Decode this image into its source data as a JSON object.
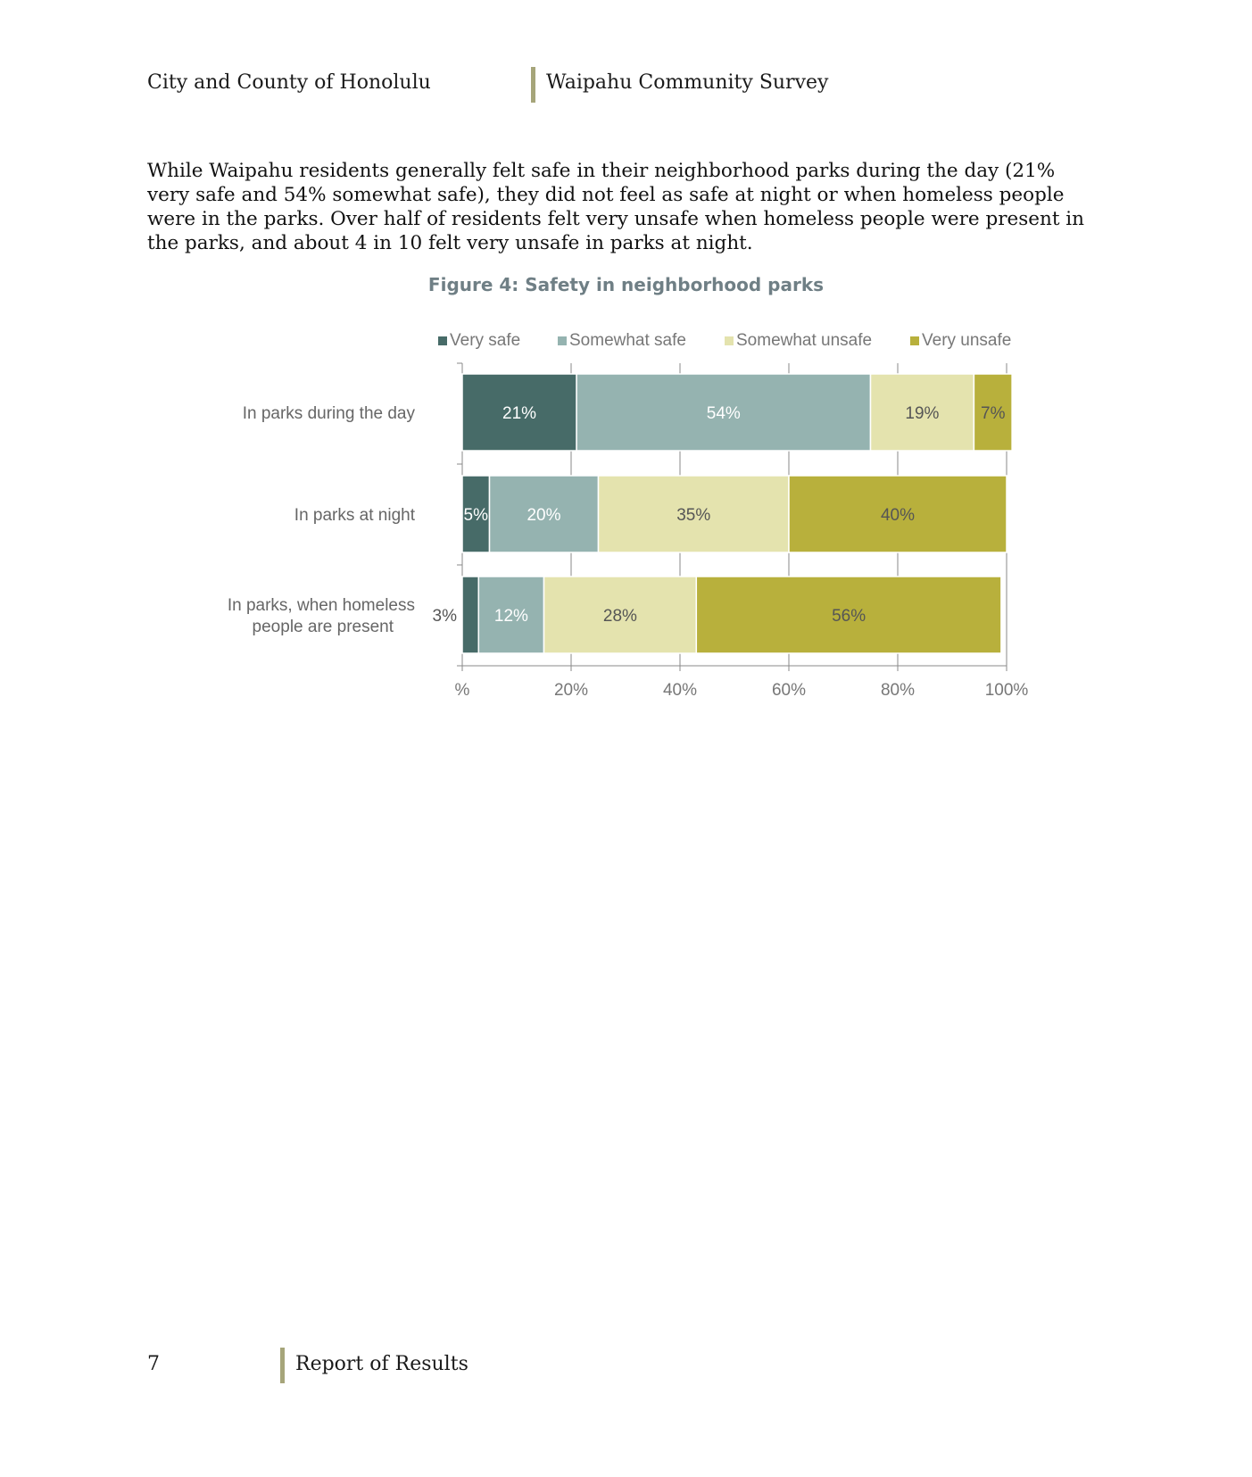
{
  "header": {
    "left": "City and County of Honolulu",
    "right": "Waipahu Community Survey"
  },
  "body": {
    "paragraph": "While Waipahu residents generally felt safe in their neighborhood parks during the day (21% very safe and 54% somewhat safe), they did not feel as safe at night or when homeless people were in the parks. Over half of residents felt very unsafe when homeless people were present in the parks, and about 4 in 10 felt very unsafe in parks at night."
  },
  "figure": {
    "title": "Figure 4: Safety in neighborhood parks"
  },
  "chart_data": {
    "type": "bar",
    "orientation": "horizontal",
    "stacked": true,
    "title": "Figure 4: Safety in neighborhood parks",
    "categories": [
      [
        "In parks during the day"
      ],
      [
        "In parks at night"
      ],
      [
        "In parks, when homeless",
        "people are present"
      ]
    ],
    "series": [
      {
        "name": "Very safe",
        "color": "#476b68",
        "values": [
          21,
          5,
          3
        ],
        "labels": [
          "21%",
          "5%",
          "3%"
        ],
        "label_color": "#ffffff"
      },
      {
        "name": "Somewhat safe",
        "color": "#95b3b0",
        "values": [
          54,
          20,
          12
        ],
        "labels": [
          "54%",
          "20%",
          "12%"
        ],
        "label_color": "#ffffff"
      },
      {
        "name": "Somewhat unsafe",
        "color": "#e4e3ae",
        "values": [
          19,
          35,
          28
        ],
        "labels": [
          "19%",
          "35%",
          "28%"
        ],
        "label_color": "#555555"
      },
      {
        "name": "Very unsafe",
        "color": "#b8b03c",
        "values": [
          7,
          40,
          56
        ],
        "labels": [
          "7%",
          "40%",
          "56%"
        ],
        "label_color": "#555555"
      }
    ],
    "xlim": [
      0,
      100
    ],
    "xticks": [
      0,
      20,
      40,
      60,
      80,
      100
    ],
    "xtick_labels": [
      "%",
      "20%",
      "40%",
      "60%",
      "80%",
      "100%"
    ],
    "legend_position": "top",
    "grid": true
  },
  "footer": {
    "page_number": "7",
    "text": "Report of Results"
  }
}
